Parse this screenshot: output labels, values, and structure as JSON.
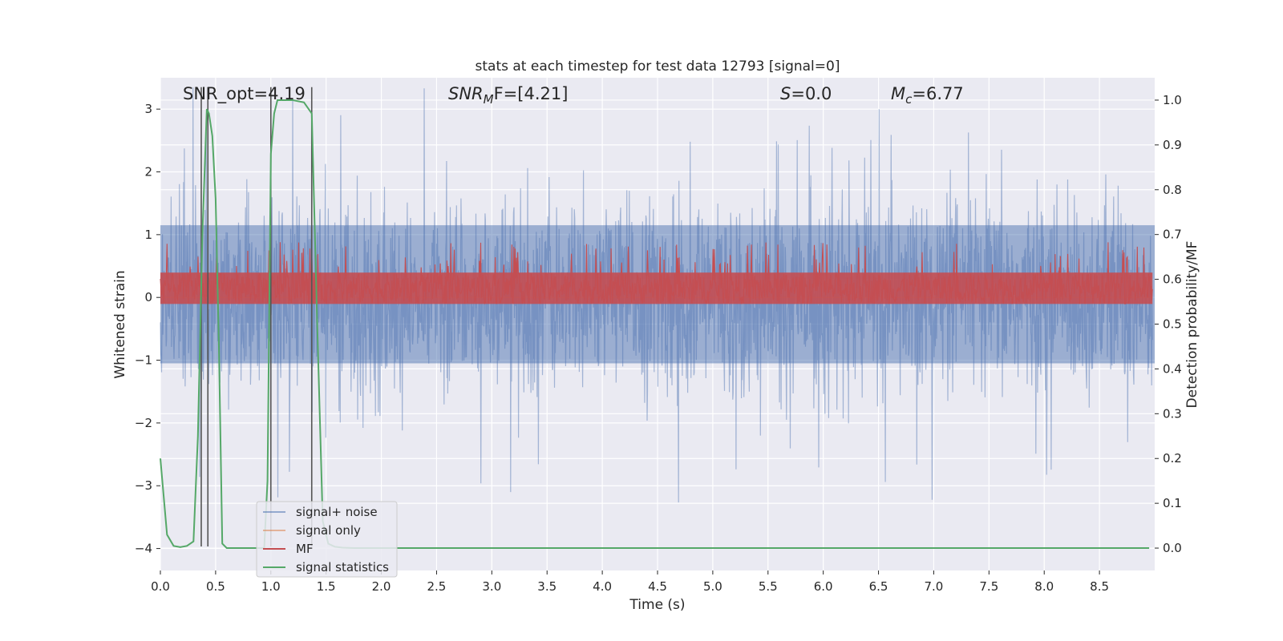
{
  "chart_data": {
    "type": "line",
    "title": "stats at each timestep for test data 12793 [signal=0]",
    "xlabel": "Time (s)",
    "ylabel_left": "Whitened strain",
    "ylabel_right": "Detection probability/MF",
    "xlim": [
      0,
      9.0
    ],
    "ylim_left": [
      -4.35,
      3.5
    ],
    "ylim_right": [
      -0.05,
      1.05
    ],
    "x_ticks": [
      0.0,
      0.5,
      1.0,
      1.5,
      2.0,
      2.5,
      3.0,
      3.5,
      4.0,
      4.5,
      5.0,
      5.5,
      6.0,
      6.5,
      7.0,
      7.5,
      8.0,
      8.5
    ],
    "x_tick_labels": [
      "0.0",
      "0.5",
      "1.0",
      "1.5",
      "2.0",
      "2.5",
      "3.0",
      "3.5",
      "4.0",
      "4.5",
      "5.0",
      "5.5",
      "6.0",
      "6.5",
      "7.0",
      "7.5",
      "8.0",
      "8.5"
    ],
    "y_left_ticks": [
      -4,
      -3,
      -2,
      -1,
      0,
      1,
      2,
      3
    ],
    "y_left_tick_labels": [
      "−4",
      "−3",
      "−2",
      "−1",
      "0",
      "1",
      "2",
      "3"
    ],
    "y_right_ticks": [
      0.0,
      0.1,
      0.2,
      0.3,
      0.4,
      0.5,
      0.6,
      0.7,
      0.8,
      0.9,
      1.0
    ],
    "y_right_tick_labels": [
      "0.0",
      "0.1",
      "0.2",
      "0.3",
      "0.4",
      "0.5",
      "0.6",
      "0.7",
      "0.8",
      "0.9",
      "1.0"
    ],
    "grid": true,
    "legend_placement": "lower-left",
    "annotations": {
      "snr_opt": "SNR_opt=4.19",
      "snr_mf_main": "SNR",
      "snr_mf_sub": "M",
      "snr_mf_rest": "F=[4.21]",
      "s_main": "S",
      "s_rest": "=0.0",
      "mc_main": "M",
      "mc_sub": "c",
      "mc_rest": "=6.77"
    },
    "vertical_lines_x": [
      0.37,
      0.43,
      1.0,
      1.37
    ],
    "series": [
      {
        "name": "signal+ noise",
        "color": "#4c72b0",
        "axis": "left",
        "description_range": [
          -4.0,
          3.35
        ],
        "typical_envelope": [
          -1.7,
          2.0
        ]
      },
      {
        "name": "signal only",
        "color": "#dd8452",
        "axis": "left",
        "values_constant": 0
      },
      {
        "name": "MF",
        "color": "#c44e52",
        "axis": "right",
        "band": [
          0.545,
          0.66
        ]
      },
      {
        "name": "signal statistics",
        "color": "#55a868",
        "axis": "right",
        "x": [
          0.0,
          0.06,
          0.12,
          0.18,
          0.24,
          0.3,
          0.34,
          0.38,
          0.42,
          0.44,
          0.47,
          0.5,
          0.53,
          0.56,
          0.6,
          0.7,
          0.85,
          0.94,
          0.97,
          1.0,
          1.03,
          1.06,
          1.1,
          1.2,
          1.3,
          1.37,
          1.42,
          1.47,
          1.52,
          1.58,
          1.65,
          1.75,
          2.0,
          3.0,
          4.0,
          5.0,
          6.0,
          7.0,
          8.0,
          8.95
        ],
        "values": [
          0.2,
          0.03,
          0.005,
          0.002,
          0.005,
          0.015,
          0.25,
          0.7,
          0.98,
          0.97,
          0.92,
          0.78,
          0.45,
          0.01,
          0.0,
          0.0,
          0.0,
          0.0,
          0.15,
          0.88,
          0.97,
          1.0,
          1.0,
          1.0,
          0.995,
          0.97,
          0.5,
          0.06,
          0.01,
          0.003,
          0.001,
          0.0,
          0.0,
          0.0,
          0.0,
          0.0,
          0.0,
          0.0,
          0.0,
          0.0
        ]
      }
    ],
    "legend": [
      {
        "label": "signal+ noise",
        "color": "#4c72b0"
      },
      {
        "label": "signal only",
        "color": "#dd8452"
      },
      {
        "label": "MF",
        "color": "#c44e52"
      },
      {
        "label": "signal statistics",
        "color": "#55a868"
      }
    ]
  }
}
